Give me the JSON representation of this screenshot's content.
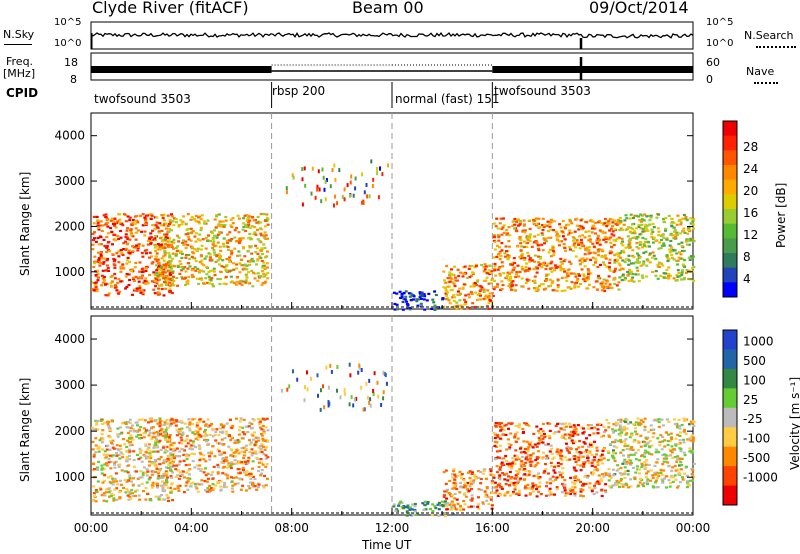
{
  "header": {
    "station": "Clyde River (fitACF)",
    "beam": "Beam 00",
    "date": "09/Oct/2014"
  },
  "noise_panel": {
    "left_label": "N.Sky",
    "right_label": "N.Search",
    "left_ticks": [
      "10^5",
      "10^0"
    ],
    "right_ticks": [
      "10^5",
      "10^0"
    ]
  },
  "freq_panel": {
    "left_label_1": "Freq.",
    "left_label_2": "[MHz]",
    "right_label": "Nave",
    "left_ticks": [
      "18",
      "8"
    ],
    "right_ticks": [
      "60",
      "0"
    ]
  },
  "cpid": {
    "label": "CPID",
    "segments": [
      {
        "name": "twofsound 3503",
        "start_h": 0.0,
        "end_h": 7.2
      },
      {
        "name": "rbsp 200",
        "start_h": 7.2,
        "end_h": 12.0
      },
      {
        "name": "normal (fast) 151",
        "start_h": 12.0,
        "end_h": 16.0
      },
      {
        "name": "twofsound 3503",
        "start_h": 16.0,
        "end_h": 24.0
      }
    ]
  },
  "time_axis": {
    "label": "Time UT",
    "ticks": [
      "00:00",
      "04:00",
      "08:00",
      "12:00",
      "16:00",
      "20:00",
      "00:00"
    ]
  },
  "chart_data": [
    {
      "type": "heatmap",
      "name": "power",
      "ylabel": "Slant Range [km]",
      "yticks": [
        "1000",
        "2000",
        "3000",
        "4000"
      ],
      "ylim": [
        180,
        4500
      ],
      "xlim_hours": [
        0,
        24
      ],
      "colorbar_label": "Power [dB]",
      "colorbar_ticks": [
        "4",
        "8",
        "12",
        "16",
        "20",
        "24",
        "28"
      ],
      "colors": [
        "#0000ff",
        "#2244bb",
        "#2e7b5e",
        "#4a9b4a",
        "#55bb33",
        "#99cc33",
        "#ddcc00",
        "#ffaa00",
        "#ff8800",
        "#ff5500",
        "#ff2200",
        "#ee0000"
      ],
      "regions": [
        {
          "t0": 0.0,
          "t1": 3.2,
          "r0": 500,
          "r1": 2300,
          "level": 0.8
        },
        {
          "t0": 2.5,
          "t1": 7.0,
          "r0": 700,
          "r1": 2300,
          "level": 0.6
        },
        {
          "t0": 14.0,
          "t1": 16.0,
          "r0": 200,
          "r1": 1200,
          "level": 0.7
        },
        {
          "t0": 16.0,
          "t1": 21.0,
          "r0": 600,
          "r1": 2200,
          "level": 0.7
        },
        {
          "t0": 21.0,
          "t1": 24.0,
          "r0": 800,
          "r1": 2300,
          "level": 0.5
        },
        {
          "t0": 12.0,
          "t1": 14.0,
          "r0": 180,
          "r1": 600,
          "level": 0.05
        }
      ]
    },
    {
      "type": "heatmap",
      "name": "velocity",
      "ylabel": "Slant Range [km]",
      "yticks": [
        "1000",
        "2000",
        "3000",
        "4000"
      ],
      "ylim": [
        180,
        4500
      ],
      "xlim_hours": [
        0,
        24
      ],
      "colorbar_label": "Velocity [m s⁻¹]",
      "colorbar_ticks": [
        "1000",
        "500",
        "100",
        "25",
        "-25",
        "-100",
        "-500",
        "-1000"
      ],
      "colors": [
        "#2244cc",
        "#2266aa",
        "#338844",
        "#66cc33",
        "#bbbbbb",
        "#ffcc44",
        "#ff8800",
        "#ff4400",
        "#ee0000"
      ],
      "regions": [
        {
          "t0": 0.0,
          "t1": 3.2,
          "r0": 500,
          "r1": 2300,
          "level": 0.6
        },
        {
          "t0": 2.5,
          "t1": 7.0,
          "r0": 700,
          "r1": 2300,
          "level": 0.65
        },
        {
          "t0": 12.0,
          "t1": 14.5,
          "r0": 180,
          "r1": 500,
          "level": 0.35
        },
        {
          "t0": 14.0,
          "t1": 16.0,
          "r0": 300,
          "r1": 1200,
          "level": 0.7
        },
        {
          "t0": 16.0,
          "t1": 20.5,
          "r0": 600,
          "r1": 2200,
          "level": 0.75
        },
        {
          "t0": 20.5,
          "t1": 24.0,
          "r0": 800,
          "r1": 2300,
          "level": 0.55
        }
      ]
    }
  ]
}
